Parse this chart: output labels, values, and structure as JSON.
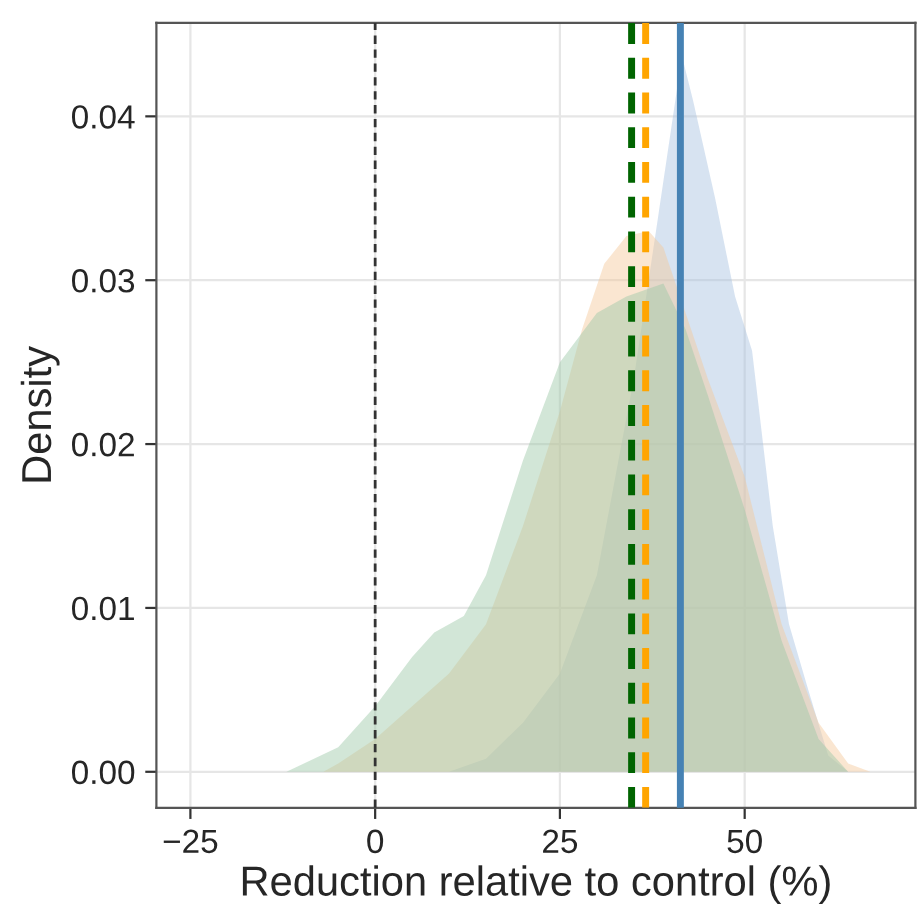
{
  "chart_data": {
    "type": "area",
    "xlabel": "Reduction relative to control (%)",
    "ylabel": "Density",
    "xlim": [
      -29.6,
      73.1
    ],
    "ylim": [
      -0.0022,
      0.0457
    ],
    "xticks": [
      {
        "value": -25,
        "label": "−25"
      },
      0,
      25,
      50
    ],
    "yticks": [
      {
        "value": 0,
        "label": "0.00"
      },
      {
        "value": 0.01,
        "label": "0.01"
      },
      {
        "value": 0.02,
        "label": "0.02"
      },
      {
        "value": 0.03,
        "label": "0.03"
      },
      {
        "value": 0.04,
        "label": "0.04"
      }
    ],
    "grid": true,
    "legend": false,
    "series": [
      {
        "color": "#a6c2e0",
        "x": [
          10,
          15,
          20,
          25,
          30,
          35,
          38,
          40.3,
          41.5,
          43,
          46,
          48.7,
          51,
          53.8,
          56,
          58.6,
          61.3,
          64
        ],
        "values": [
          0,
          0.0008,
          0.003,
          0.006,
          0.012,
          0.024,
          0.033,
          0.04,
          0.0437,
          0.041,
          0.035,
          0.029,
          0.0257,
          0.015,
          0.009,
          0.005,
          0.001,
          0
        ]
      },
      {
        "color": "#f5c89a",
        "x": [
          -7,
          -5,
          0,
          5,
          10,
          15,
          20,
          25,
          28,
          31,
          34,
          37,
          39,
          42,
          45,
          50,
          55,
          60,
          64,
          67
        ],
        "values": [
          0,
          0.0005,
          0.002,
          0.004,
          0.006,
          0.009,
          0.015,
          0.022,
          0.027,
          0.031,
          0.0327,
          0.033,
          0.032,
          0.028,
          0.024,
          0.018,
          0.009,
          0.003,
          0.0005,
          0
        ]
      },
      {
        "color": "#9cc7a6",
        "x": [
          -12,
          -5,
          0,
          5,
          8,
          12,
          15,
          20,
          25,
          30,
          34,
          39,
          42,
          45,
          50,
          55,
          60,
          64
        ],
        "values": [
          0,
          0.0015,
          0.004,
          0.007,
          0.0085,
          0.0095,
          0.012,
          0.019,
          0.025,
          0.028,
          0.029,
          0.0298,
          0.027,
          0.023,
          0.016,
          0.008,
          0.002,
          0
        ]
      }
    ],
    "ref_lines": [
      {
        "axis": "x",
        "value": 0,
        "color": "#333333",
        "line_style": "dashed"
      },
      {
        "axis": "x",
        "value": 34.7,
        "color": "#006400",
        "line_style": "dashed"
      },
      {
        "axis": "x",
        "value": 36.6,
        "color": "#ffa500",
        "line_style": "dashed"
      },
      {
        "axis": "x",
        "value": 41.3,
        "color": "#4682b4",
        "line_style": "solid"
      }
    ]
  }
}
